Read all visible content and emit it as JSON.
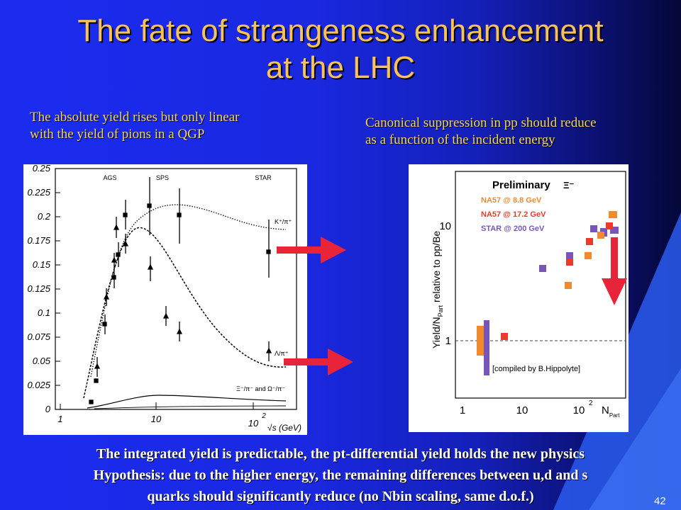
{
  "slide": {
    "title_line1": "The fate of strangeness enhancement",
    "title_line2": "at the LHC",
    "note_left_line1": "The absolute yield rises but only linear",
    "note_left_line2": "with the yield of  pions in a QGP",
    "note_right_line1": "Canonical suppression in pp should reduce",
    "note_right_line2": "as a function of the incident energy",
    "footer_line1": "The integrated yield is predictable,  the pt-differential yield holds the new physics",
    "footer_line2": "Hypothesis: due to the higher energy, the remaining differences between u,d and s",
    "footer_line3": "quarks should significantly reduce (no Nbin scaling, same d.o.f.)",
    "slide_number": "42",
    "colors": {
      "title": "#f7c25a",
      "notes": "#f4d26b",
      "arrows": "#e8243a",
      "background": "#1b2cf0"
    }
  },
  "left_plot": {
    "y_ticks": [
      "0.25",
      "0.225",
      "0.2",
      "0.175",
      "0.15",
      "0.125",
      "0.1",
      "0.075",
      "0.05",
      "0.025",
      "0"
    ],
    "x_ticks": [
      "1",
      "10",
      "10"
    ],
    "x_tick_sup": "2",
    "x_label": "√s (GeV)",
    "top_labels": [
      "AGS",
      "SPS",
      "STAR"
    ],
    "curve_labels": {
      "kaon": "K⁺/π⁺",
      "lambda": "Λ/π⁺",
      "xi_omega": "Ξ⁻/π⁻ and Ω⁻/π⁻"
    }
  },
  "right_plot": {
    "header": "Preliminary",
    "header_symbol": "Ξ⁻",
    "legend": [
      {
        "label": "NA57 @ 8.8 GeV",
        "color": "#f08a30"
      },
      {
        "label": "NA57 @ 17.2 GeV",
        "color": "#e83b2c"
      },
      {
        "label": "STAR @ 200 GeV",
        "color": "#7a55b8"
      }
    ],
    "y_label": "Yield/N",
    "y_label_sub": "Part",
    "y_label_rest": " relative to pp/Be",
    "y_ticks": [
      "10",
      "1"
    ],
    "x_ticks": [
      "1",
      "10",
      "10"
    ],
    "x_tick_sup": "2",
    "x_label": "N",
    "x_label_sub": "Part",
    "credit": "[compiled by B.Hippolyte]"
  }
}
